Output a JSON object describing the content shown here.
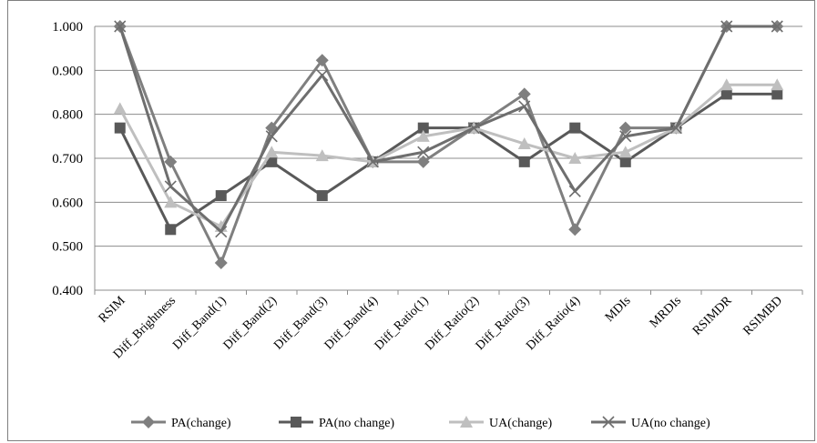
{
  "chart_data": {
    "type": "line",
    "title": "",
    "xlabel": "",
    "ylabel": "",
    "categories": [
      "RSIM",
      "Diff_Brightness",
      "Diff_Band(1)",
      "Diff_Band(2)",
      "Diff_Band(3)",
      "Diff_Band(4)",
      "Diff_Ratio(1)",
      "Diff_Ratio(2)",
      "Diff_Ratio(3)",
      "Diff_Ratio(4)",
      "MDIs",
      "MRDIs",
      "RSIMDR",
      "RSIMBD"
    ],
    "ylim": [
      0.4,
      1.0
    ],
    "yticks": [
      "0.400",
      "0.500",
      "0.600",
      "0.700",
      "0.800",
      "0.900",
      "1.000"
    ],
    "grid": true,
    "legend": "bottom",
    "series": [
      {
        "name": "PA(change)",
        "color": "#7f7f7f",
        "marker": "diamond",
        "values": [
          1.0,
          0.692,
          0.462,
          0.769,
          0.923,
          0.692,
          0.692,
          0.769,
          0.846,
          0.538,
          0.769,
          0.769,
          1.0,
          1.0
        ]
      },
      {
        "name": "PA(no change)",
        "color": "#595959",
        "marker": "square",
        "values": [
          0.769,
          0.538,
          0.615,
          0.692,
          0.615,
          0.692,
          0.769,
          0.769,
          0.692,
          0.769,
          0.692,
          0.769,
          0.846,
          0.846
        ]
      },
      {
        "name": "UA(change)",
        "color": "#bfbfbf",
        "marker": "triangle",
        "values": [
          0.813,
          0.6,
          0.545,
          0.714,
          0.706,
          0.692,
          0.75,
          0.769,
          0.733,
          0.7,
          0.714,
          0.769,
          0.867,
          0.867
        ]
      },
      {
        "name": "UA(no change)",
        "color": "#6e6e6e",
        "marker": "x",
        "values": [
          1.0,
          0.636,
          0.533,
          0.75,
          0.889,
          0.692,
          0.714,
          0.769,
          0.818,
          0.625,
          0.75,
          0.769,
          1.0,
          1.0
        ]
      }
    ]
  }
}
